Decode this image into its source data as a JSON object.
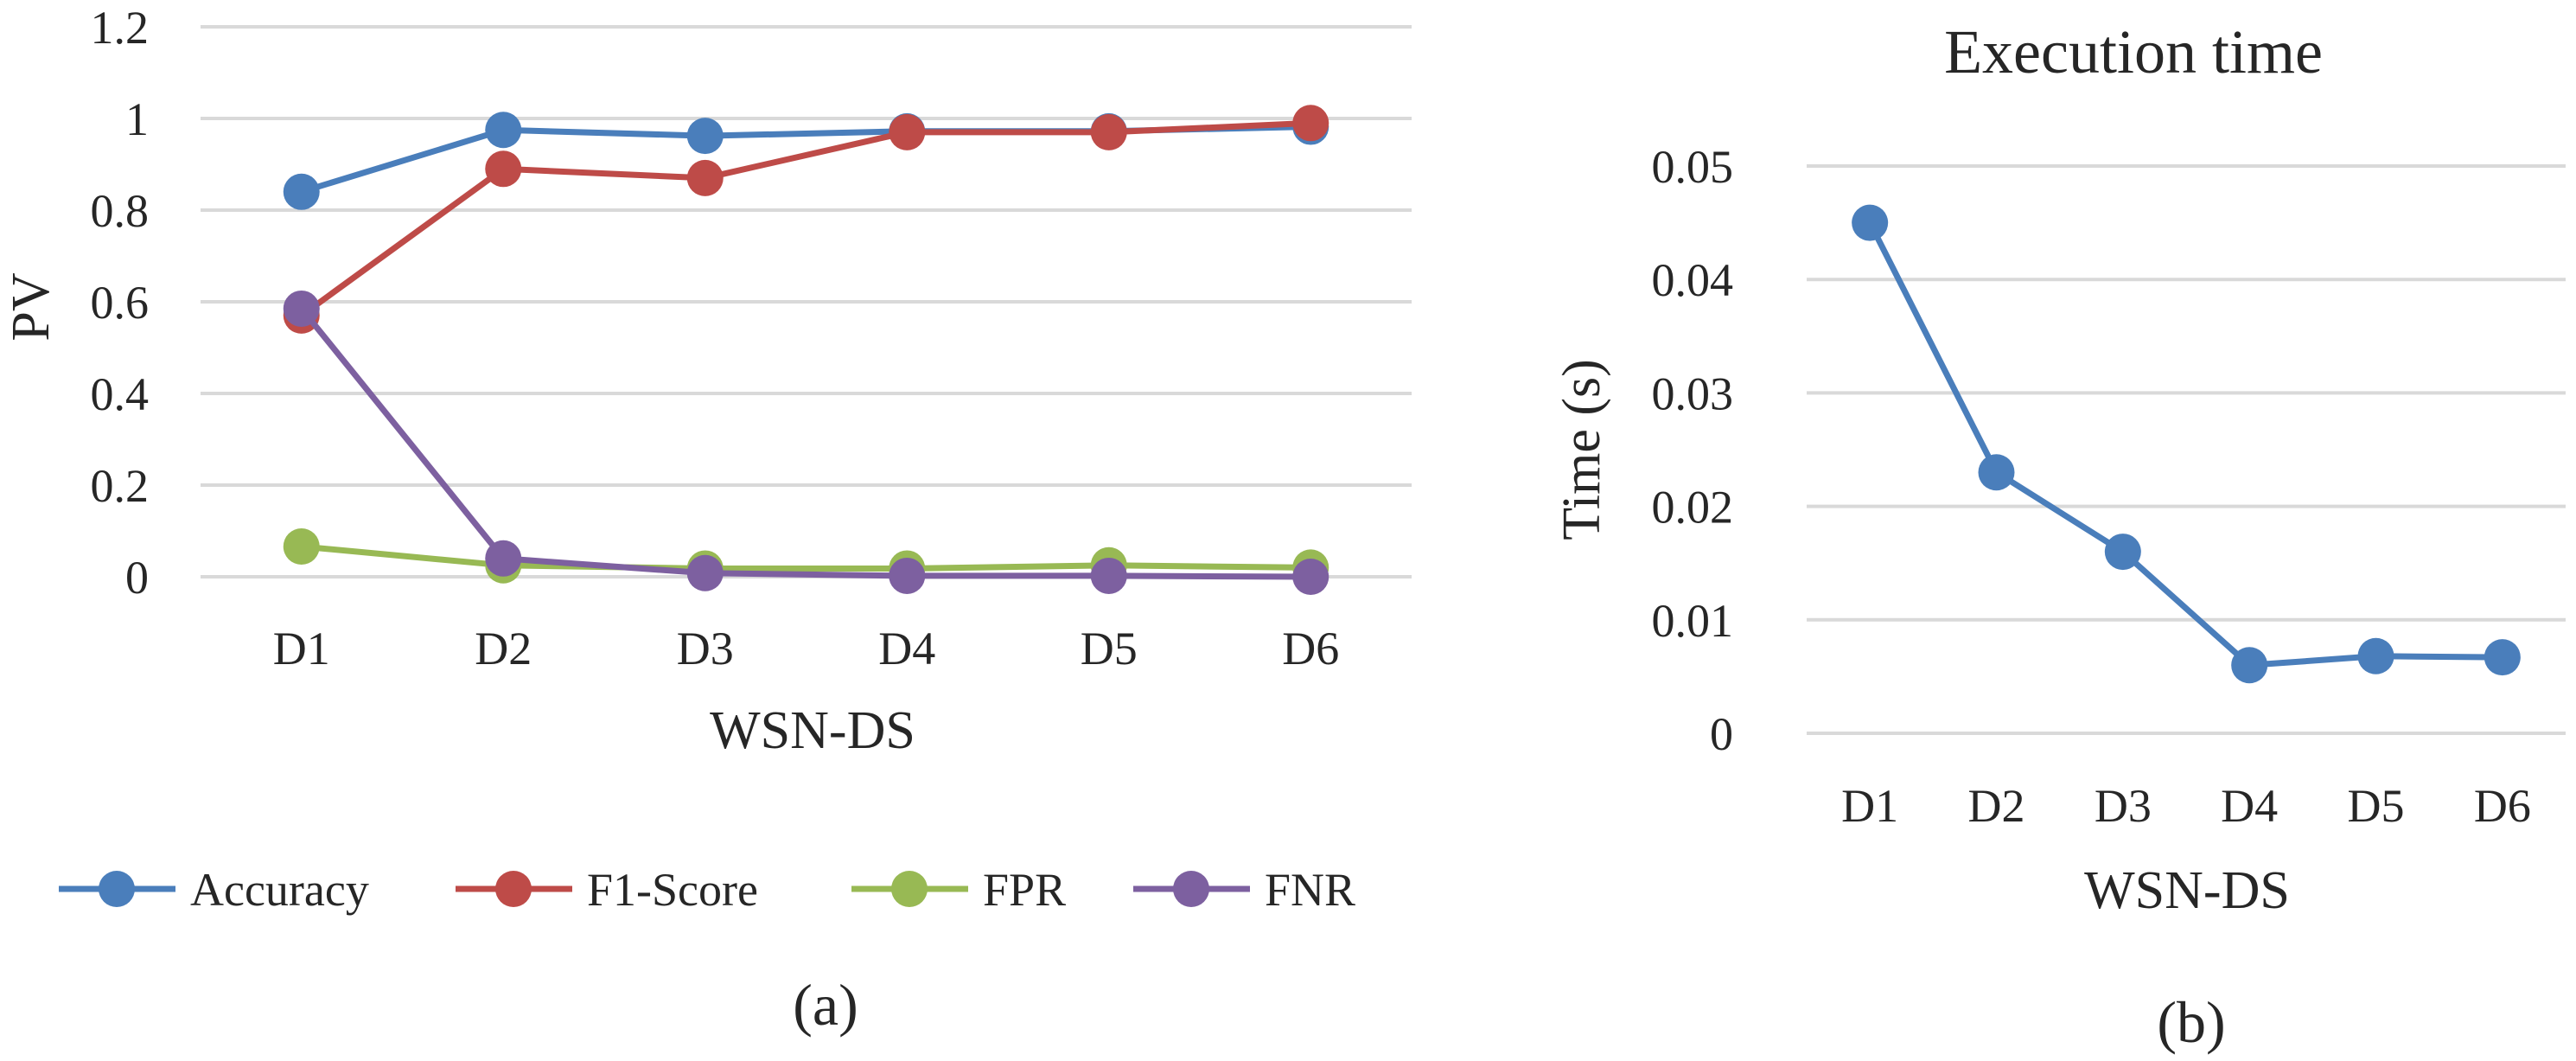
{
  "chart_data": [
    {
      "type": "line",
      "title": "",
      "caption": "(a)",
      "xlabel": "WSN-DS",
      "ylabel": "PV",
      "categories": [
        "D1",
        "D2",
        "D3",
        "D4",
        "D5",
        "D6"
      ],
      "ylim": [
        0,
        1.2
      ],
      "yticks": [
        "0",
        "0.2",
        "0.4",
        "0.6",
        "0.8",
        "1",
        "1.2"
      ],
      "grid": true,
      "legend": "bottom",
      "series": [
        {
          "name": "Accuracy",
          "color": "#4a7ebb",
          "values": [
            0.84,
            0.975,
            0.962,
            0.972,
            0.972,
            0.982
          ]
        },
        {
          "name": "F1-Score",
          "color": "#be4b48",
          "values": [
            0.57,
            0.89,
            0.87,
            0.97,
            0.97,
            0.99
          ]
        },
        {
          "name": "FPR",
          "color": "#98b954",
          "values": [
            0.066,
            0.025,
            0.018,
            0.018,
            0.025,
            0.02
          ]
        },
        {
          "name": "FNR",
          "color": "#7d60a0",
          "values": [
            0.585,
            0.04,
            0.008,
            0.002,
            0.002,
            0.0
          ]
        }
      ]
    },
    {
      "type": "line",
      "title": "Execution time",
      "caption": "(b)",
      "xlabel": "WSN-DS",
      "ylabel": "Time (s)",
      "categories": [
        "D1",
        "D2",
        "D3",
        "D4",
        "D5",
        "D6"
      ],
      "ylim": [
        0,
        0.05
      ],
      "yticks": [
        "0",
        "0.01",
        "0.02",
        "0.03",
        "0.04",
        "0.05"
      ],
      "grid": true,
      "legend": "none",
      "series": [
        {
          "color": "#4a7ebb",
          "values": [
            0.045,
            0.023,
            0.016,
            0.006,
            0.0068,
            0.0067
          ]
        }
      ]
    }
  ]
}
